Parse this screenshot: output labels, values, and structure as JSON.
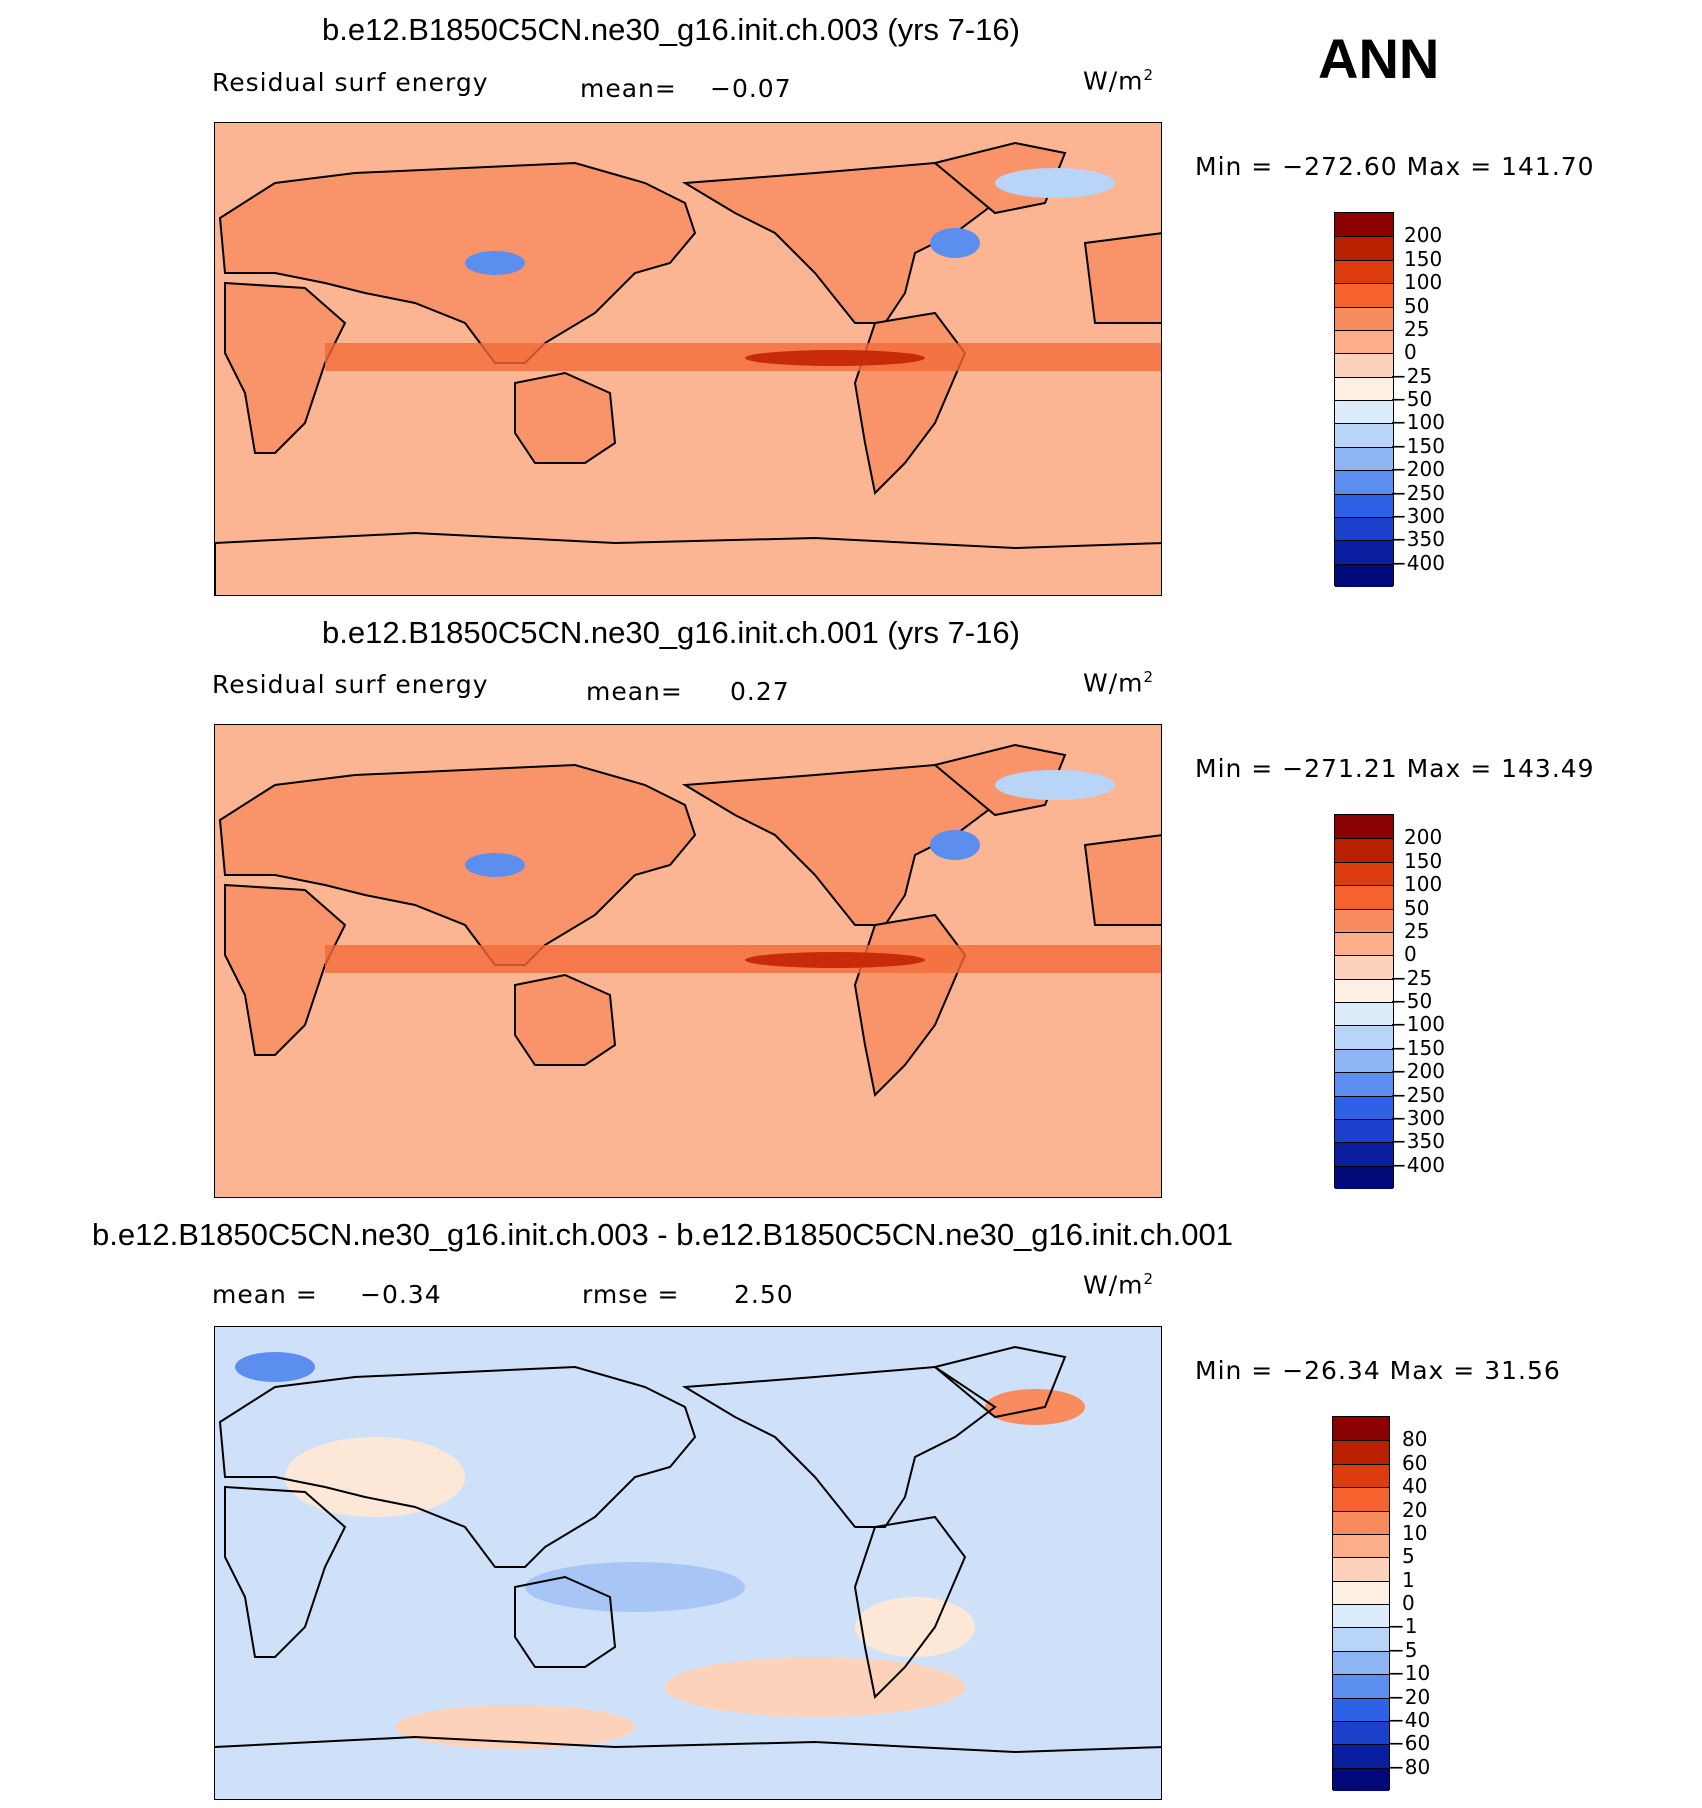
{
  "season": "ANN",
  "panels": [
    {
      "title": "b.e12.B1850C5CN.ne30_g16.init.ch.003 (yrs 7-16)",
      "left_label": "Residual surf energy",
      "center_label": "mean=",
      "center_value": "−0.07",
      "units": "W/m",
      "units_sup": "2",
      "minmax": "Min = −272.60 Max = 141.70",
      "colorbar_labels": [
        "200",
        "150",
        "100",
        "50",
        "25",
        "0",
        "−25",
        "−50",
        "−100",
        "−150",
        "−200",
        "−250",
        "−300",
        "−350",
        "−400"
      ],
      "colorbar_colors": [
        "#8b0000",
        "#b82000",
        "#dd3c0e",
        "#f5622d",
        "#f98c5e",
        "#fcae89",
        "#fdd2bb",
        "#fdf0e3",
        "#dcebfa",
        "#b8d4f7",
        "#8db5f4",
        "#5c8ef0",
        "#2e62e6",
        "#1a40cc",
        "#0a1fa0",
        "#00087a"
      ]
    },
    {
      "title": "b.e12.B1850C5CN.ne30_g16.init.ch.001 (yrs 7-16)",
      "left_label": "Residual surf energy",
      "center_label": "mean=",
      "center_value": "0.27",
      "units": "W/m",
      "units_sup": "2",
      "minmax": "Min = −271.21 Max = 143.49",
      "colorbar_labels": [
        "200",
        "150",
        "100",
        "50",
        "25",
        "0",
        "−25",
        "−50",
        "−100",
        "−150",
        "−200",
        "−250",
        "−300",
        "−350",
        "−400"
      ],
      "colorbar_colors": [
        "#8b0000",
        "#b82000",
        "#dd3c0e",
        "#f5622d",
        "#f98c5e",
        "#fcae89",
        "#fdd2bb",
        "#fdf0e3",
        "#dcebfa",
        "#b8d4f7",
        "#8db5f4",
        "#5c8ef0",
        "#2e62e6",
        "#1a40cc",
        "#0a1fa0",
        "#00087a"
      ]
    },
    {
      "title": "b.e12.B1850C5CN.ne30_g16.init.ch.003 - b.e12.B1850C5CN.ne30_g16.init.ch.001",
      "left_label": "mean =",
      "left_value": "−0.34",
      "center_label": "rmse =",
      "center_value": "2.50",
      "units": "W/m",
      "units_sup": "2",
      "minmax": "Min = −26.34 Max =   31.56",
      "colorbar_labels": [
        "80",
        "60",
        "40",
        "20",
        "10",
        "5",
        "1",
        "0",
        "−1",
        "−5",
        "−10",
        "−20",
        "−40",
        "−60",
        "−80"
      ],
      "colorbar_colors": [
        "#8b0000",
        "#b82000",
        "#dd3c0e",
        "#f5622d",
        "#f98c5e",
        "#fcae89",
        "#fdd2bb",
        "#fdf0e3",
        "#dcebfa",
        "#b8d4f7",
        "#8db5f4",
        "#5c8ef0",
        "#2e62e6",
        "#1a40cc",
        "#0a1fa0",
        "#00087a"
      ]
    }
  ],
  "chart_data": [
    {
      "type": "heatmap",
      "title": "b.e12.B1850C5CN.ne30_g16.init.ch.003 (yrs 7-16)",
      "variable": "Residual surf energy",
      "units": "W/m2",
      "mean": -0.07,
      "min": -272.6,
      "max": 141.7,
      "levels": [
        -400,
        -350,
        -300,
        -250,
        -200,
        -150,
        -100,
        -50,
        -25,
        0,
        25,
        50,
        100,
        150,
        200
      ]
    },
    {
      "type": "heatmap",
      "title": "b.e12.B1850C5CN.ne30_g16.init.ch.001 (yrs 7-16)",
      "variable": "Residual surf energy",
      "units": "W/m2",
      "mean": 0.27,
      "min": -271.21,
      "max": 143.49,
      "levels": [
        -400,
        -350,
        -300,
        -250,
        -200,
        -150,
        -100,
        -50,
        -25,
        0,
        25,
        50,
        100,
        150,
        200
      ]
    },
    {
      "type": "heatmap",
      "title": "b.e12.B1850C5CN.ne30_g16.init.ch.003 - b.e12.B1850C5CN.ne30_g16.init.ch.001",
      "units": "W/m2",
      "mean": -0.34,
      "rmse": 2.5,
      "min": -26.34,
      "max": 31.56,
      "levels": [
        -80,
        -60,
        -40,
        -20,
        -10,
        -5,
        -1,
        0,
        1,
        5,
        10,
        20,
        40,
        60,
        80
      ]
    }
  ]
}
